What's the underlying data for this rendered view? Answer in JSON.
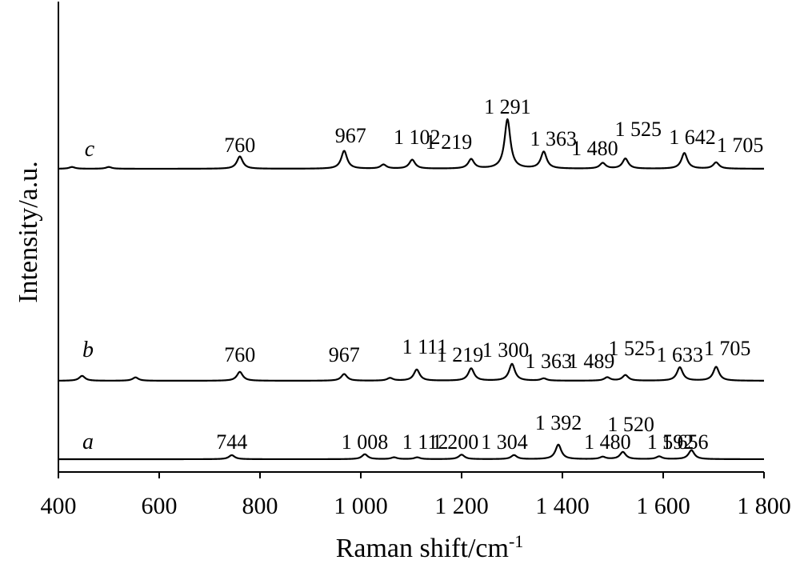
{
  "chart_data": {
    "type": "line",
    "xlabel": "Raman shift/cm",
    "xlabel_sup": "-1",
    "ylabel": "Intensity/a.u.",
    "xlim": [
      400,
      1800
    ],
    "x_ticks": [
      400,
      600,
      800,
      1000,
      1200,
      1400,
      1600,
      1800
    ],
    "x_tick_labels": [
      "400",
      "600",
      "800",
      "1 000",
      "1 200",
      "1 400",
      "1 600",
      "1 800"
    ],
    "grid": false,
    "series": [
      {
        "name": "a",
        "peaks": [
          {
            "x": 744,
            "h": 0.18,
            "label": "744"
          },
          {
            "x": 1008,
            "h": 0.22,
            "label": "1 008"
          },
          {
            "x": 1066,
            "h": 0.08
          },
          {
            "x": 1112,
            "h": 0.08,
            "label": "1 112"
          },
          {
            "x": 1200,
            "h": 0.2,
            "label": "1 200"
          },
          {
            "x": 1304,
            "h": 0.18,
            "label": "1 304"
          },
          {
            "x": 1392,
            "h": 0.65,
            "label": "1 392"
          },
          {
            "x": 1480,
            "h": 0.1,
            "label": "1 480"
          },
          {
            "x": 1520,
            "h": 0.32,
            "label": "1 520"
          },
          {
            "x": 1592,
            "h": 0.12,
            "label": "1 592"
          },
          {
            "x": 1656,
            "h": 0.4,
            "label": "1 656"
          }
        ]
      },
      {
        "name": "b",
        "peaks": [
          {
            "x": 447,
            "h": 0.22
          },
          {
            "x": 553,
            "h": 0.15
          },
          {
            "x": 760,
            "h": 0.4,
            "label": "760"
          },
          {
            "x": 967,
            "h": 0.3,
            "label": "967"
          },
          {
            "x": 1058,
            "h": 0.12
          },
          {
            "x": 1111,
            "h": 0.5,
            "label": "1 111"
          },
          {
            "x": 1219,
            "h": 0.55,
            "label": "1 219"
          },
          {
            "x": 1300,
            "h": 0.75,
            "label": "1 300"
          },
          {
            "x": 1363,
            "h": 0.1,
            "label": "1 363"
          },
          {
            "x": 1489,
            "h": 0.15,
            "label": "1 489"
          },
          {
            "x": 1525,
            "h": 0.25,
            "label": "1 525"
          },
          {
            "x": 1633,
            "h": 0.6,
            "label": "1 633"
          },
          {
            "x": 1705,
            "h": 0.62,
            "label": "1 705"
          }
        ]
      },
      {
        "name": "c",
        "peaks": [
          {
            "x": 427,
            "h": 0.08
          },
          {
            "x": 500,
            "h": 0.08
          },
          {
            "x": 760,
            "h": 0.55,
            "label": "760"
          },
          {
            "x": 967,
            "h": 0.8,
            "label": "967"
          },
          {
            "x": 1045,
            "h": 0.18
          },
          {
            "x": 1102,
            "h": 0.4,
            "label": "1 102"
          },
          {
            "x": 1219,
            "h": 0.42,
            "label": "1 219"
          },
          {
            "x": 1291,
            "h": 2.2,
            "label": "1 291"
          },
          {
            "x": 1363,
            "h": 0.75,
            "label": "1 363"
          },
          {
            "x": 1480,
            "h": 0.25,
            "label": "1 480"
          },
          {
            "x": 1525,
            "h": 0.45,
            "label": "1 525"
          },
          {
            "x": 1642,
            "h": 0.7,
            "label": "1 642"
          },
          {
            "x": 1705,
            "h": 0.28,
            "label": "1 705"
          }
        ]
      }
    ]
  }
}
